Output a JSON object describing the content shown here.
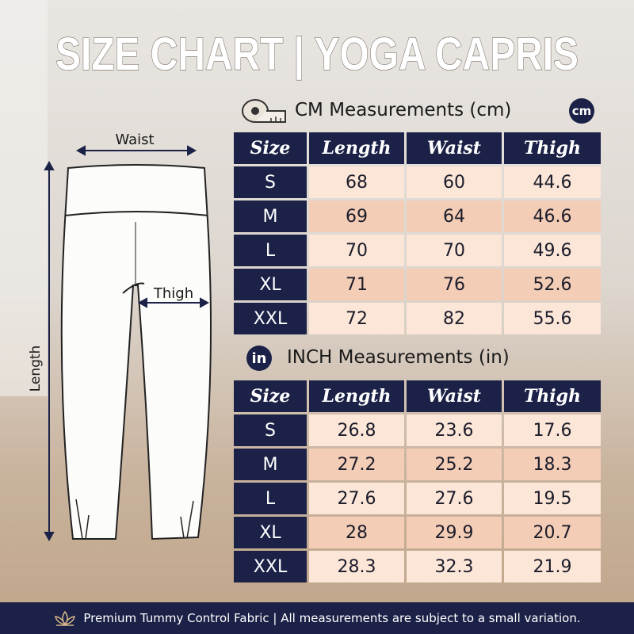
{
  "title": "SIZE CHART | YOGA CAPRIS",
  "diagram": {
    "waist": "Waist",
    "thigh": "Thigh",
    "length": "Length"
  },
  "cm": {
    "badge": "cm",
    "heading": "CM Measurements (cm)",
    "header": [
      "Size",
      "Length",
      "Waist",
      "Thigh"
    ],
    "rows": [
      [
        "S",
        68,
        60,
        44.6
      ],
      [
        "M",
        69,
        64,
        46.6
      ],
      [
        "L",
        70,
        70,
        49.6
      ],
      [
        "XL",
        71,
        76,
        52.6
      ],
      [
        "XXL",
        72,
        82,
        55.6
      ]
    ]
  },
  "inch": {
    "badge": "in",
    "heading": "INCH Measurements (in)",
    "header": [
      "Size",
      "Length",
      "Waist",
      "Thigh"
    ],
    "rows": [
      [
        "S",
        26.8,
        23.6,
        17.6
      ],
      [
        "M",
        27.2,
        25.2,
        18.3
      ],
      [
        "L",
        27.6,
        27.6,
        19.5
      ],
      [
        "XL",
        28,
        29.9,
        20.7
      ],
      [
        "XXL",
        28.3,
        32.3,
        21.9
      ]
    ]
  },
  "footer": "Premium Tummy Control Fabric | All measurements are subject to a small variation."
}
